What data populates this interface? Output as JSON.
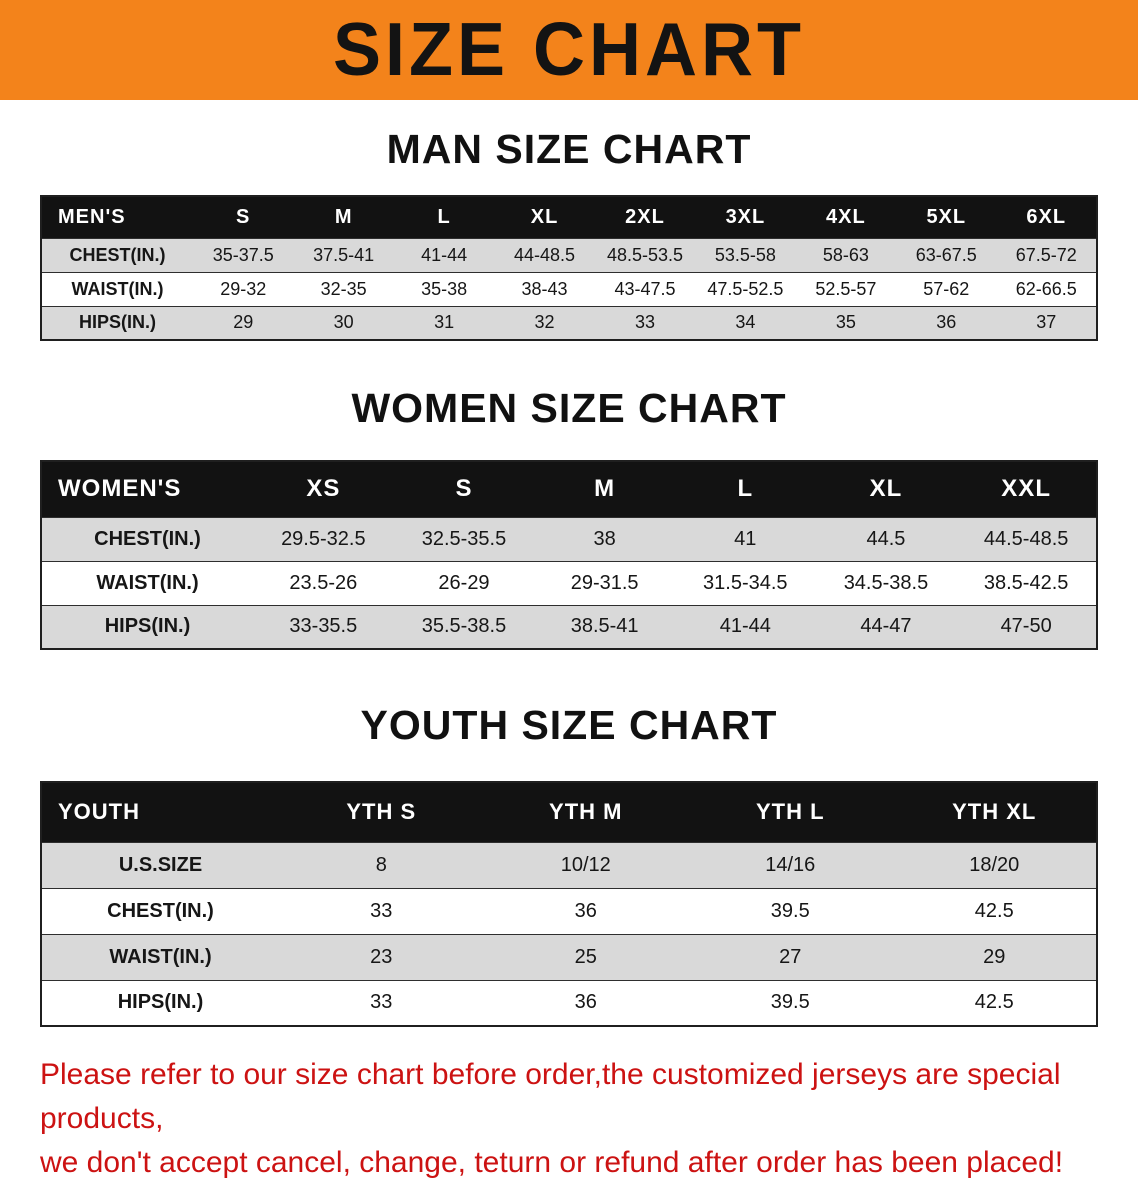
{
  "banner": {
    "title": "SIZE CHART"
  },
  "colors": {
    "banner_bg": "#f3831b",
    "header_bg": "#121212",
    "row_shade": "#d9d9d9",
    "row_plain": "#ffffff",
    "footer_text": "#cc1212",
    "heading_text": "#111111"
  },
  "sections": [
    {
      "heading": "MAN SIZE CHART",
      "table": {
        "header_label": "MEN'S",
        "columns": [
          "S",
          "M",
          "L",
          "XL",
          "2XL",
          "3XL",
          "4XL",
          "5XL",
          "6XL"
        ],
        "rows": [
          {
            "label": "CHEST(IN.)",
            "values": [
              "35-37.5",
              "37.5-41",
              "41-44",
              "44-48.5",
              "48.5-53.5",
              "53.5-58",
              "58-63",
              "63-67.5",
              "67.5-72"
            ]
          },
          {
            "label": "WAIST(IN.)",
            "values": [
              "29-32",
              "32-35",
              "35-38",
              "38-43",
              "43-47.5",
              "47.5-52.5",
              "52.5-57",
              "57-62",
              "62-66.5"
            ]
          },
          {
            "label": "HIPS(IN.)",
            "values": [
              "29",
              "30",
              "31",
              "32",
              "33",
              "34",
              "35",
              "36",
              "37"
            ]
          }
        ]
      }
    },
    {
      "heading": "WOMEN SIZE CHART",
      "table": {
        "header_label": "WOMEN'S",
        "columns": [
          "XS",
          "S",
          "M",
          "L",
          "XL",
          "XXL"
        ],
        "rows": [
          {
            "label": "CHEST(IN.)",
            "values": [
              "29.5-32.5",
              "32.5-35.5",
              "38",
              "41",
              "44.5",
              "44.5-48.5"
            ]
          },
          {
            "label": "WAIST(IN.)",
            "values": [
              "23.5-26",
              "26-29",
              "29-31.5",
              "31.5-34.5",
              "34.5-38.5",
              "38.5-42.5"
            ]
          },
          {
            "label": "HIPS(IN.)",
            "values": [
              "33-35.5",
              "35.5-38.5",
              "38.5-41",
              "41-44",
              "44-47",
              "47-50"
            ]
          }
        ]
      }
    },
    {
      "heading": "YOUTH SIZE CHART",
      "table": {
        "header_label": "YOUTH",
        "columns": [
          "YTH S",
          "YTH M",
          "YTH L",
          "YTH XL"
        ],
        "rows": [
          {
            "label": "U.S.SIZE",
            "values": [
              "8",
              "10/12",
              "14/16",
              "18/20"
            ]
          },
          {
            "label": "CHEST(IN.)",
            "values": [
              "33",
              "36",
              "39.5",
              "42.5"
            ]
          },
          {
            "label": "WAIST(IN.)",
            "values": [
              "23",
              "25",
              "27",
              "29"
            ]
          },
          {
            "label": "HIPS(IN.)",
            "values": [
              "33",
              "36",
              "39.5",
              "42.5"
            ]
          }
        ]
      }
    }
  ],
  "footer": {
    "line1": "Please refer to our size chart before order,the customized jerseys are special products,",
    "line2": "we don't accept cancel, change, teturn or refund after order has been placed!"
  }
}
